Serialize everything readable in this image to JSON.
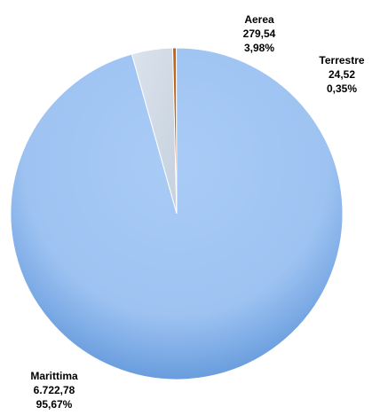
{
  "chart_data": {
    "type": "pie",
    "title": "",
    "slices": [
      {
        "label": "Marittima",
        "value_text": "6.722,78",
        "percent_text": "95,67%",
        "value": 6722.78,
        "percent": 95.67,
        "color": "#8fb8ee"
      },
      {
        "label": "Aerea",
        "value_text": "279,54",
        "percent_text": "3,98%",
        "value": 279.54,
        "percent": 3.98,
        "color": "#d3dce6"
      },
      {
        "label": "Terrestre",
        "value_text": "24,52",
        "percent_text": "0,35%",
        "value": 24.52,
        "percent": 0.35,
        "color": "#c0641a"
      }
    ],
    "start_angle_deg": 344.3,
    "direction": "clockwise",
    "legend": "none",
    "data_labels": "outside"
  }
}
